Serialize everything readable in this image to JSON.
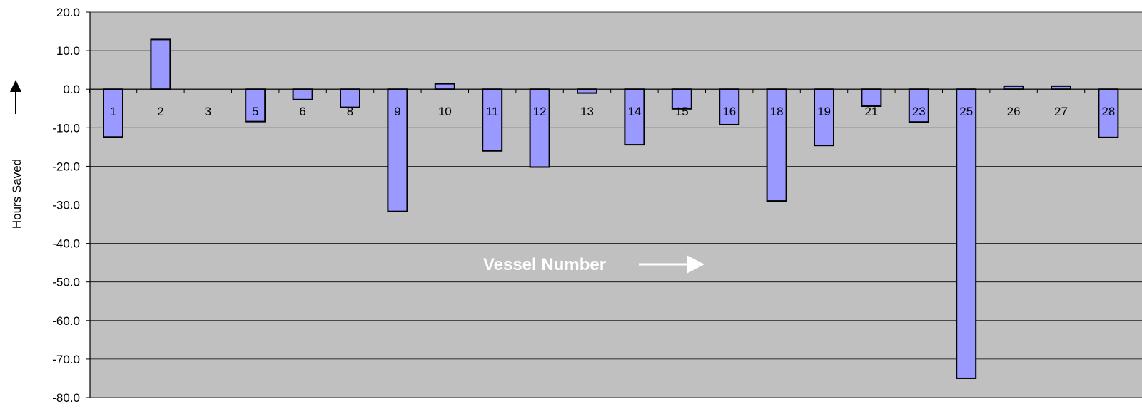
{
  "chart_data": {
    "type": "bar",
    "title": "",
    "xlabel": "",
    "ylabel": "Hours Saved",
    "annotation": "Vessel Number",
    "categories": [
      "1",
      "2",
      "3",
      "5",
      "6",
      "8",
      "9",
      "10",
      "11",
      "12",
      "13",
      "14",
      "15",
      "16",
      "18",
      "19",
      "21",
      "23",
      "25",
      "26",
      "27",
      "28"
    ],
    "series": [
      {
        "values": [
          -12.4,
          12.9,
          0,
          -8.4,
          -2.7,
          -4.7,
          -31.7,
          1.4,
          -16.0,
          -20.2,
          -1.0,
          -14.4,
          -5.1,
          -9.2,
          -29.0,
          -14.6,
          -4.4,
          -8.5,
          -75.0,
          0.8,
          0.8,
          -12.5
        ]
      }
    ],
    "ylim": [
      -80,
      20
    ],
    "yticks": [
      "20.0",
      "10.0",
      "0.0",
      "-10.0",
      "-20.0",
      "-30.0",
      "-40.0",
      "-50.0",
      "-60.0",
      "-70.0",
      "-80.0"
    ],
    "grid": true,
    "colors": {
      "bar": "#9999ff",
      "plot_background": "#c0c0c0",
      "bar_outline": "#000000"
    }
  }
}
